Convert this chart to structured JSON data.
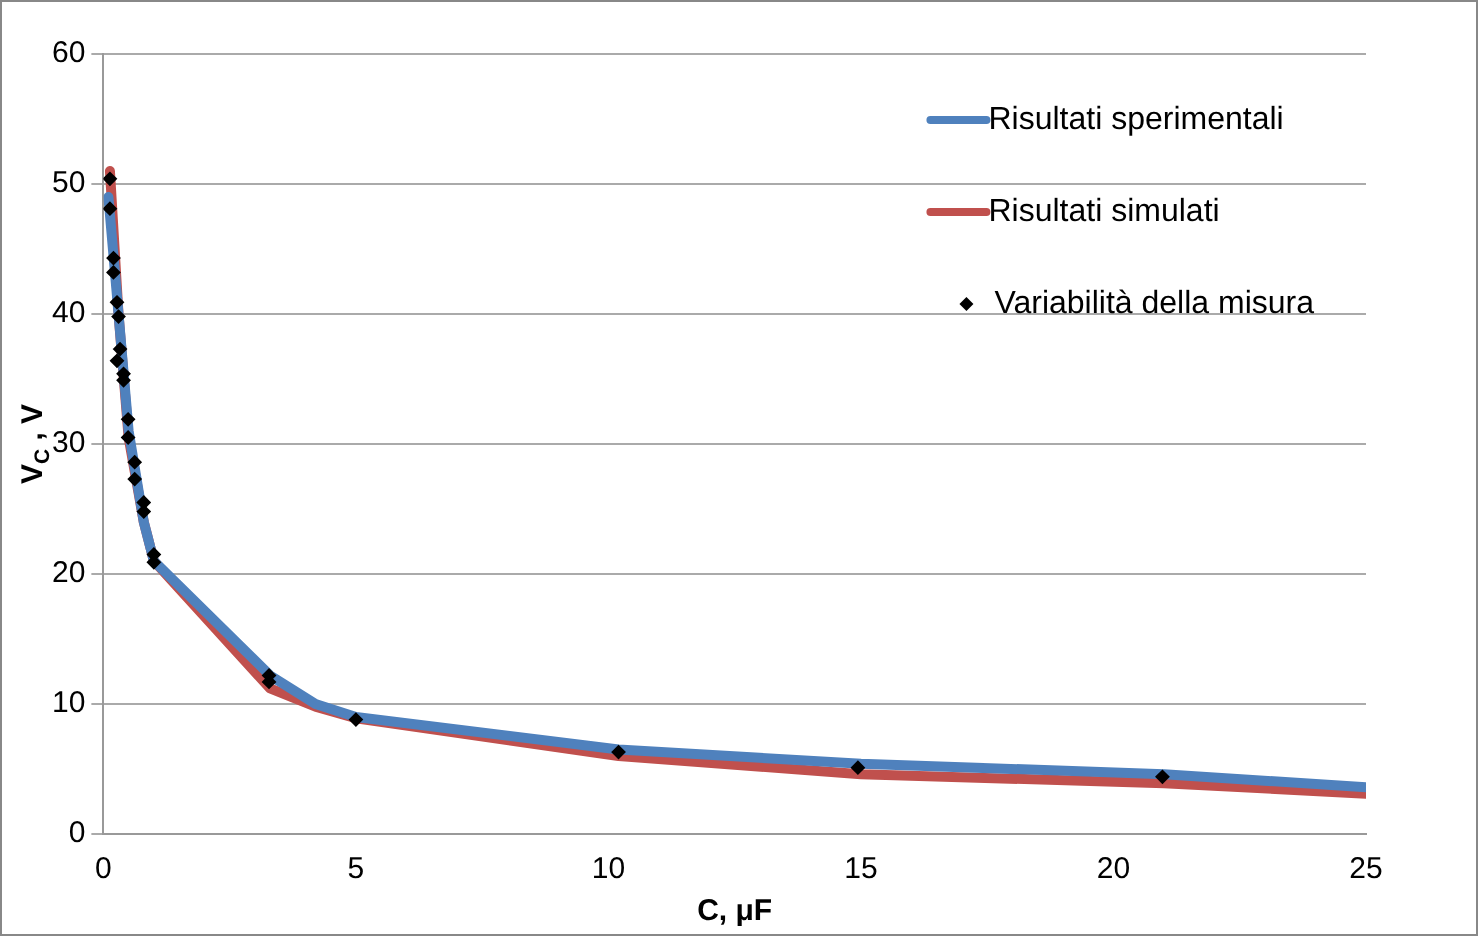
{
  "chart_data": {
    "type": "line",
    "xlabel": "C, μF",
    "ylabel": "V$_{C}$ , V",
    "xlim": [
      0,
      25
    ],
    "xticks": [
      0,
      5,
      10,
      15,
      20,
      25
    ],
    "ylim": [
      0,
      60
    ],
    "yticks": [
      0,
      10,
      20,
      30,
      40,
      50,
      60
    ],
    "grid": "y",
    "legend": "top right",
    "marker": "none",
    "series": [
      {
        "name": "Risultati sperimentali",
        "color": "#4f81bd",
        "x": [
          0.1,
          0.3,
          0.5,
          0.8,
          1.0,
          3.3,
          4.2,
          5.0,
          10.2,
          15.0,
          21.0,
          25.0
        ],
        "values": [
          49,
          40,
          31,
          24,
          21,
          12.2,
          10,
          9,
          6.5,
          5.4,
          4.6,
          3.6
        ]
      },
      {
        "name": "Risultati simulati",
        "color": "#c0504d",
        "x": [
          0.13,
          0.3,
          0.5,
          0.8,
          1.0,
          3.3,
          4.2,
          5.0,
          10.2,
          15.0,
          21.0,
          25.0
        ],
        "values": [
          51,
          40,
          30.5,
          24,
          21,
          11.2,
          9.8,
          8.9,
          6.0,
          4.6,
          3.9,
          3.1
        ]
      },
      {
        "name": "Variabilità della misura",
        "type": "scatter",
        "marker": "diamond",
        "color": "#000000",
        "x": [
          0.13,
          0.13,
          0.2,
          0.2,
          0.27,
          0.3,
          0.33,
          0.27,
          0.4,
          0.4,
          0.49,
          0.49,
          0.62,
          0.62,
          0.8,
          0.8,
          1.0,
          1.0,
          3.28,
          3.28,
          5.0,
          10.2,
          14.94,
          20.97
        ],
        "values": [
          50.4,
          48.1,
          44.3,
          43.2,
          40.9,
          39.8,
          37.3,
          36.4,
          35.4,
          34.9,
          31.9,
          30.5,
          28.6,
          27.3,
          25.5,
          24.8,
          21.5,
          20.9,
          12.2,
          11.7,
          8.8,
          6.3,
          5.1,
          4.4
        ]
      }
    ]
  }
}
